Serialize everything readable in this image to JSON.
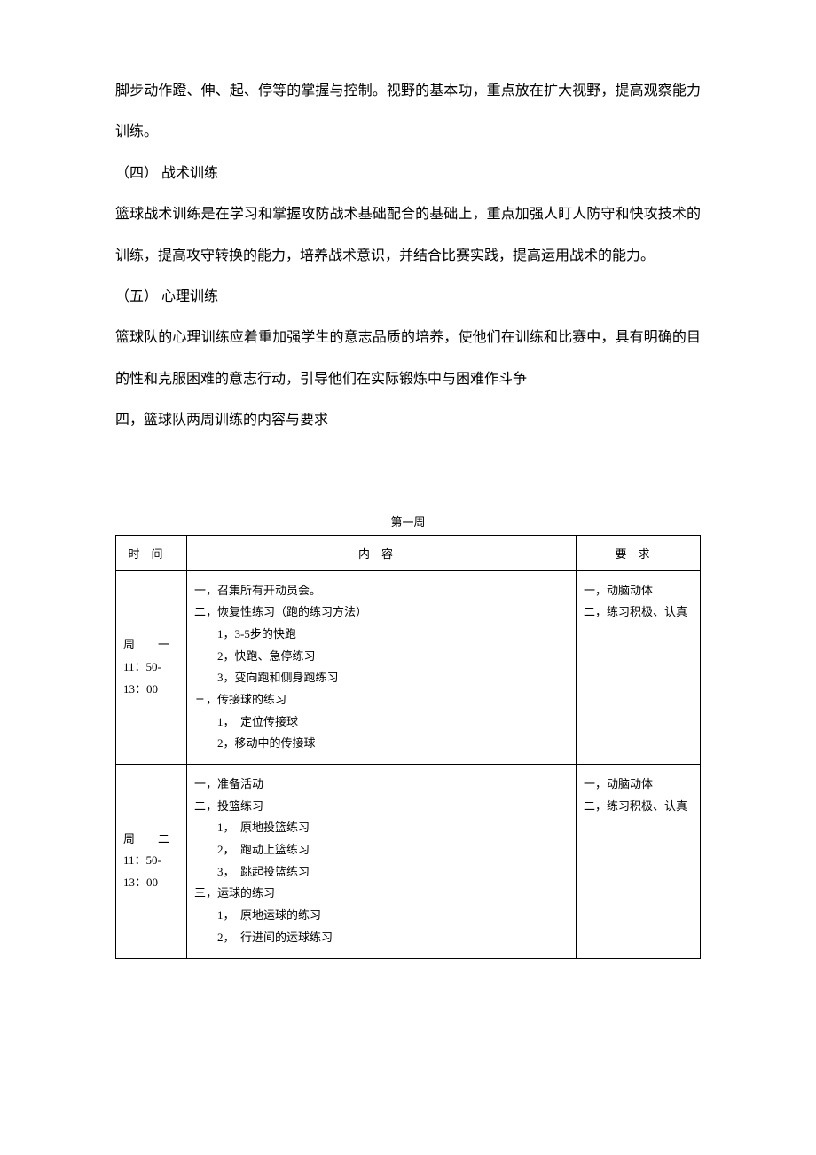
{
  "paragraphs": [
    "脚步动作蹬、伸、起、停等的掌握与控制。视野的基本功，重点放在扩大视野，提高观察能力训练。",
    "（四）  战术训练",
    "篮球战术训练是在学习和掌握攻防战术基础配合的基础上，重点加强人盯人防守和快攻技术的训练，提高攻守转换的能力，培养战术意识，并结合比赛实践，提高运用战术的能力。",
    "（五）  心理训练",
    "篮球队的心理训练应着重加强学生的意志品质的培养，使他们在训练和比赛中，具有明确的目的性和克服困难的意志行动，引导他们在实际锻炼中与困难作斗争",
    "四，篮球队两周训练的内容与要求"
  ],
  "table": {
    "caption": "第一周",
    "col_widths": [
      "80px",
      "auto",
      "140px"
    ],
    "border_color": "#000000",
    "header_bg": "#ffffff",
    "font_size": 13,
    "headers": [
      "时间",
      "内容",
      "要求"
    ],
    "rows": [
      {
        "time_lines": [
          "周　　一",
          "11：50-",
          "13：00"
        ],
        "content_lines": [
          "一，召集所有开动员会。",
          "二，恢复性练习（跑的练习方法）",
          "　　1，3-5步的快跑",
          "　　2，快跑、急停练习",
          "　　3，变向跑和侧身跑练习",
          "三，传接球的练习",
          "　　1，　定位传接球",
          "　　2，移动中的传接球"
        ],
        "req_lines": [
          "一，动脑动体",
          "二，练习积极、认真"
        ]
      },
      {
        "time_lines": [
          "周　　二",
          "11：50-",
          "13：00"
        ],
        "content_lines": [
          "一，准备活动",
          "二，投篮练习",
          "　　1，　原地投篮练习",
          "　　2，　跑动上篮练习",
          "　　3，　跳起投篮练习",
          "三，运球的练习",
          "　　1，　原地运球的练习",
          "　　2，　行进间的运球练习"
        ],
        "req_lines": [
          "一，动脑动体",
          "二，练习积极、认真"
        ]
      }
    ]
  }
}
